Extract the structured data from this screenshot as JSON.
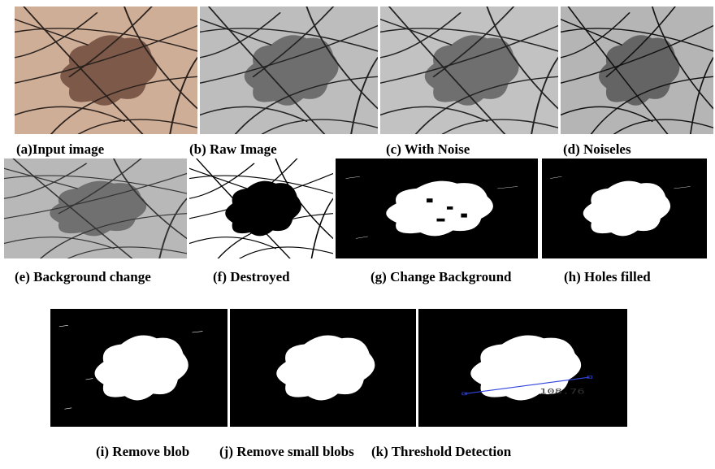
{
  "figure": {
    "panels": [
      {
        "caption": "(a)Input image"
      },
      {
        "caption": "(b) Raw Image"
      },
      {
        "caption": "(c) With Noise"
      },
      {
        "caption": "(d) Noiseles"
      },
      {
        "caption": "(e) Background change"
      },
      {
        "caption": "(f) Destroyed"
      },
      {
        "caption": "(g) Change Background"
      },
      {
        "caption": "(h) Holes filled"
      },
      {
        "caption": "(i) Remove blob"
      },
      {
        "caption": "(j) Remove small blobs"
      },
      {
        "caption": "(k) Threshold Detection"
      }
    ],
    "measurement": "108.76"
  }
}
